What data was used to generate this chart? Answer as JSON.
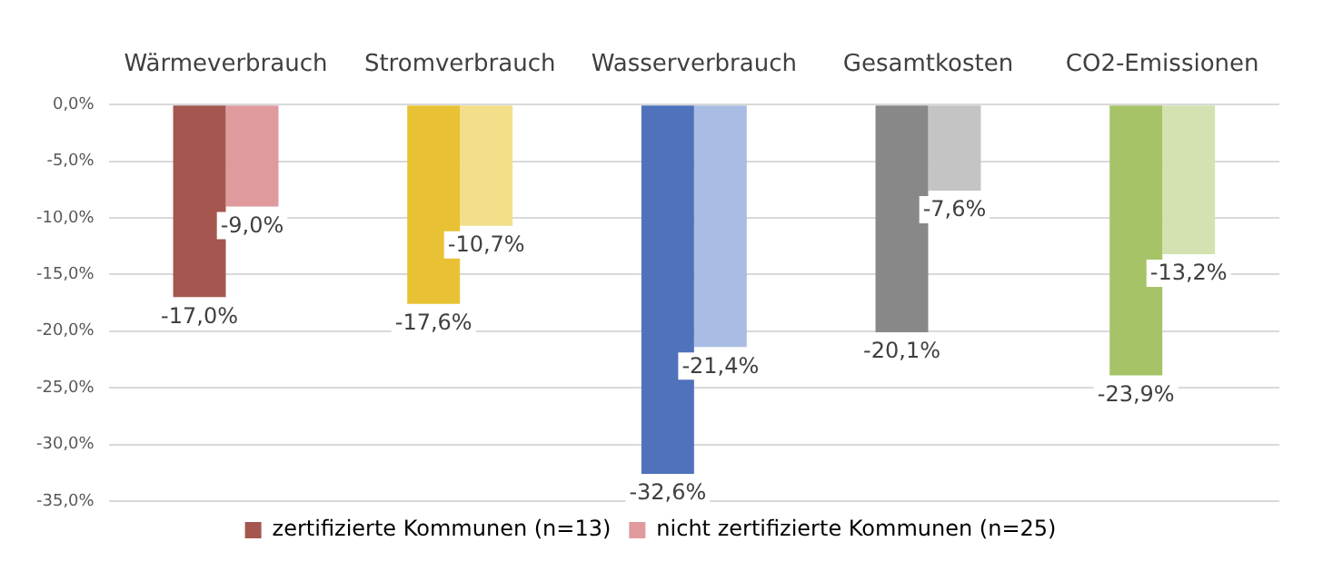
{
  "chart_data": {
    "type": "bar",
    "categories": [
      "Wärmeverbrauch",
      "Stromverbrauch",
      "Wasserverbrauch",
      "Gesamtkosten",
      "CO2-Emissionen"
    ],
    "series": [
      {
        "name": "zertifizierte Kommunen (n=13)",
        "color": "#a5574f",
        "colors": [
          "#a5574f",
          "#e8c234",
          "#4f72bb",
          "#888888",
          "#a6c367"
        ],
        "values": [
          -17.0,
          -17.6,
          -32.6,
          -20.1,
          -23.9
        ],
        "value_labels": [
          "-17,0%",
          "-17,6%",
          "-32,6%",
          "-20,1%",
          "-23,9%"
        ]
      },
      {
        "name": "nicht zertifizierte Kommunen (n=25)",
        "color": "#e09a9e",
        "colors": [
          "#e09a9e",
          "#f3de8a",
          "#a9bce3",
          "#c4c4c4",
          "#d3e2b0"
        ],
        "values": [
          -9.0,
          -10.7,
          -21.4,
          -7.6,
          -13.2
        ],
        "value_labels": [
          "-9,0%",
          "-10,7%",
          "-21,4%",
          "-7,6%",
          "-13,2%"
        ]
      }
    ],
    "ylim": [
      -35,
      0
    ],
    "yticks": [
      {
        "value": 0,
        "label": "0,0%"
      },
      {
        "value": -5,
        "label": "-5,0%"
      },
      {
        "value": -10,
        "label": "-10,0%"
      },
      {
        "value": -15,
        "label": "-15,0%"
      },
      {
        "value": -20,
        "label": "-20,0%"
      },
      {
        "value": -25,
        "label": "-25,0%"
      },
      {
        "value": -30,
        "label": "-30,0%"
      },
      {
        "value": -35,
        "label": "-35,0%"
      }
    ],
    "grid": "y",
    "legend": "bottom"
  }
}
